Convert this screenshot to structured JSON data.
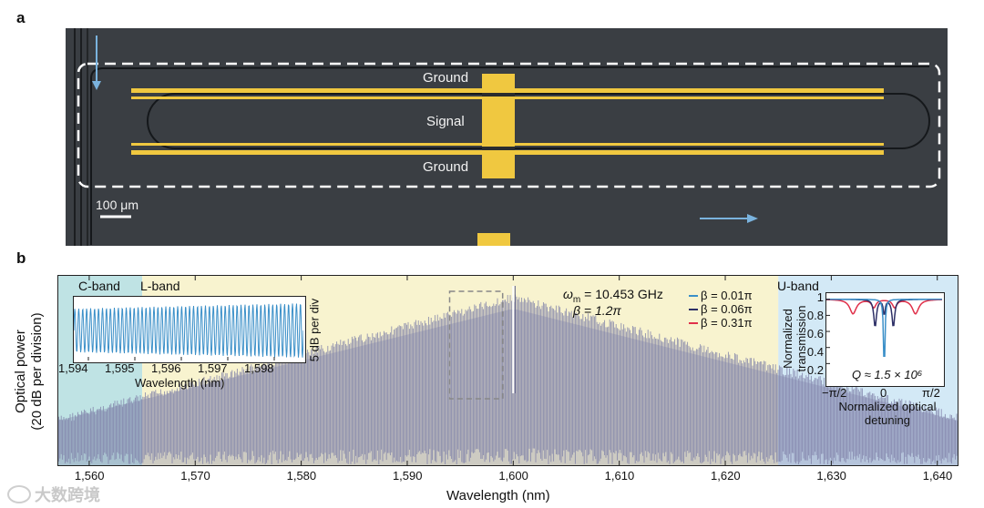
{
  "panel_a": {
    "letter": "a",
    "labels": {
      "ground_top": "Ground",
      "signal": "Signal",
      "ground_bottom": "Ground"
    },
    "scale_bar": "100 μm",
    "colors": {
      "background": "#3a3e43",
      "electrode": "#f0c840",
      "waveguide": "#15181b",
      "arrow": "#7ab3de"
    }
  },
  "panel_b": {
    "letter": "b",
    "bands": {
      "c_band": "C-band",
      "l_band": "L-band",
      "u_band": "U-band"
    },
    "annotations": {
      "omega_prefix": "ω",
      "omega_sub": "m",
      "omega_value": " = 10.453 GHz",
      "beta": "β = 1.2π"
    },
    "main_chart": {
      "chart_data": {
        "type": "line",
        "xlabel": "Wavelength (nm)",
        "ylabel": "Optical power",
        "ylabel2": "(20 dB per division)",
        "xlim": [
          1557,
          1642
        ],
        "xticks": [
          "1,560",
          "1,570",
          "1,580",
          "1,590",
          "1,600",
          "1,610",
          "1,620",
          "1,630",
          "1,640"
        ],
        "xtick_values": [
          1560,
          1570,
          1580,
          1590,
          1600,
          1610,
          1620,
          1630,
          1640
        ],
        "comb_center_nm": 1600,
        "comb_edges_nm": [
          1557,
          1642
        ],
        "bands": [
          {
            "name": "C-band",
            "range": [
              1557,
              1565
            ],
            "color": "#bfe3e4"
          },
          {
            "name": "L-band",
            "range": [
              1565,
              1625
            ],
            "color": "#f8f3cf"
          },
          {
            "name": "U-band",
            "range": [
              1625,
              1642
            ],
            "color": "#d3e9f6"
          }
        ],
        "highlight_box_nm": [
          1594,
          1599
        ],
        "series_color": "#7f80a8"
      }
    },
    "inset_left": {
      "chart_data": {
        "type": "line",
        "xlabel": "Wavelength (nm)",
        "ylabel": "5 dB per div",
        "xlim": [
          1593.8,
          1598.8
        ],
        "xticks": [
          "1,594",
          "1,595",
          "1,596",
          "1,597",
          "1,598"
        ],
        "xtick_values": [
          1594,
          1595,
          1596,
          1597,
          1598
        ],
        "series_color": "#3a8fc8"
      }
    },
    "inset_right": {
      "chart_data": {
        "type": "line",
        "xlabel": "Normalized optical detuning",
        "ylabel": "Normalized transmission",
        "ylim": [
          0,
          1.05
        ],
        "xticks": [
          "−π/2",
          "0",
          "π/2"
        ],
        "yticks": [
          "1",
          "0.8",
          "0.6",
          "0.4",
          "0.2"
        ],
        "ytick_values": [
          1,
          0.8,
          0.6,
          0.4,
          0.2
        ],
        "annotation": "Q ≈ 1.5 × 10⁶",
        "series": [
          {
            "name": "β = 0.01π",
            "color": "#3a8fc8"
          },
          {
            "name": "β = 0.06π",
            "color": "#2d2f66"
          },
          {
            "name": "β = 0.31π",
            "color": "#e0304a"
          }
        ]
      }
    }
  },
  "watermark": "大数跨境"
}
